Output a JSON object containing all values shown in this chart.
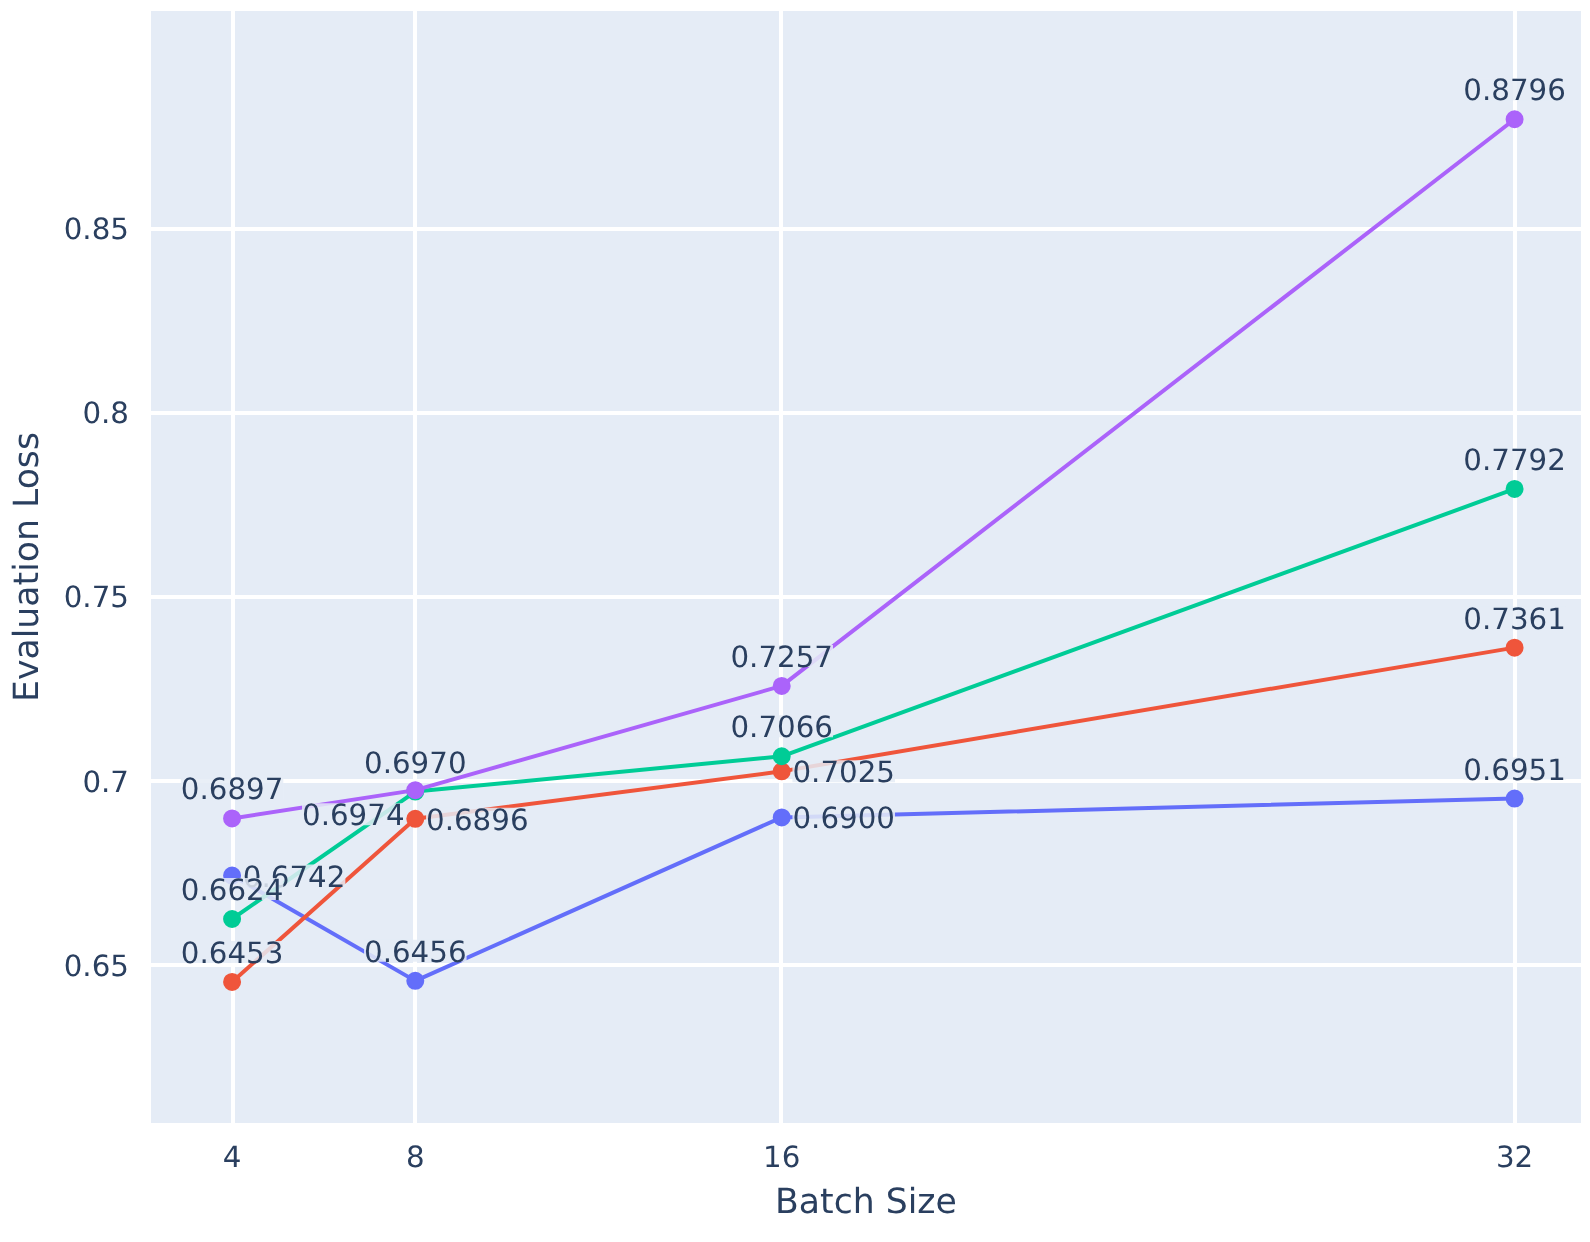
{
  "chart_data": {
    "type": "line",
    "xlabel": "Batch Size",
    "ylabel": "Evaluation Loss",
    "x": [
      4,
      8,
      16,
      32
    ],
    "series": [
      {
        "color": "#636efa",
        "values": [
          0.6742,
          0.6456,
          0.69,
          0.6951
        ],
        "value_labels": [
          "0.6742",
          "0.6456",
          "0.6900",
          "0.6951"
        ]
      },
      {
        "color": "#ef553b",
        "values": [
          0.6453,
          0.6896,
          0.7025,
          0.7361
        ],
        "value_labels": [
          "0.6453",
          "0.6896",
          "0.7025",
          "0.7361"
        ]
      },
      {
        "color": "#00cc96",
        "values": [
          0.6624,
          0.697,
          0.7066,
          0.7792
        ],
        "value_labels": [
          "0.6624",
          "0.6970",
          "0.7066",
          "0.7792"
        ]
      },
      {
        "color": "#ab63fa",
        "values": [
          0.6897,
          0.6974,
          0.7257,
          0.8796
        ],
        "value_labels": [
          "0.6897",
          "0.6974",
          "0.7257",
          "0.8796"
        ]
      }
    ],
    "xlim": [
      2.23,
      33.45
    ],
    "ylim": [
      0.607,
      0.909
    ],
    "xticks": [
      4,
      8,
      16,
      32
    ],
    "yticks": [
      0.65,
      0.7,
      0.75,
      0.8,
      0.85
    ],
    "grid": true,
    "marker": "circle",
    "line_style": "solid"
  }
}
